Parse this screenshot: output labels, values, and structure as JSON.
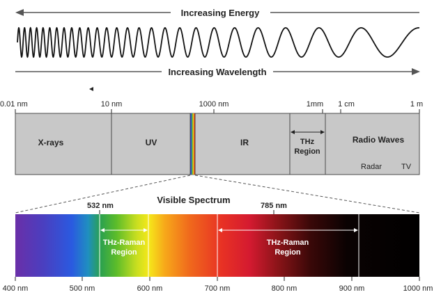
{
  "top": {
    "energy_label": "Increasing Energy",
    "wavelength_label": "Increasing Wavelength"
  },
  "scale": {
    "ticks": [
      "0.01 nm",
      "10 nm",
      "1000 nm",
      "1mm",
      "1 cm",
      "1 m"
    ]
  },
  "bands": {
    "xrays": "X-rays",
    "uv": "UV",
    "ir": "IR",
    "thz_line1": "THz",
    "thz_line2": "Region",
    "radio": "Radio Waves",
    "radar": "Radar",
    "tv": "TV"
  },
  "visible": {
    "title": "Visible Spectrum",
    "laser1": "532 nm",
    "laser2": "785 nm",
    "raman1_line1": "THz-Raman",
    "raman1_line2": "Region",
    "raman2_line1": "THz-Raman",
    "raman2_line2": "Region",
    "ticks": [
      "400 nm",
      "500 nm",
      "600 nm",
      "700 nm",
      "800 nm",
      "900 nm",
      "1000 nm"
    ]
  },
  "colors": {
    "band_fill": "#c8c8c8",
    "band_stroke": "#4a4a4a",
    "arrow": "#555555"
  }
}
